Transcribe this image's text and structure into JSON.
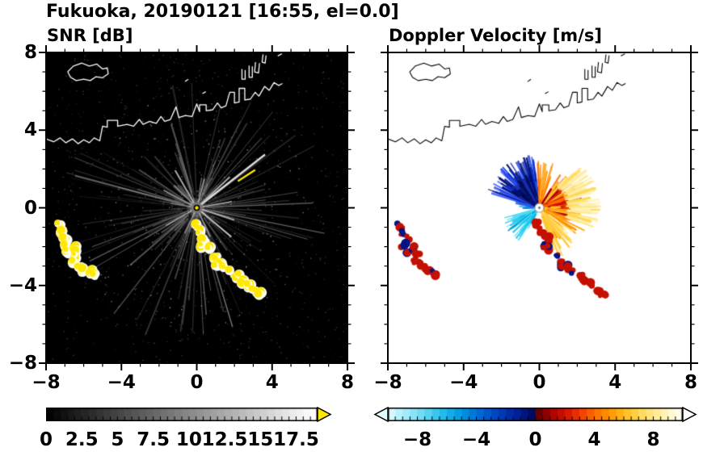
{
  "title": "Fukuoka, 20190121 [16:55, el=0.0]",
  "panels": {
    "snr": {
      "subtitle": "SNR [dB]"
    },
    "doppler": {
      "subtitle": "Doppler Velocity [m/s]"
    }
  },
  "axes": {
    "xlim": [
      -8,
      8
    ],
    "ylim": [
      -8,
      8
    ],
    "x_tick_values": [
      -8,
      -4,
      0,
      4,
      8
    ],
    "x_tick_labels": [
      "−8",
      "−4",
      "0",
      "4",
      "8"
    ],
    "y_tick_values": [
      8,
      4,
      0,
      -4,
      -8
    ],
    "y_tick_labels": [
      "8",
      "4",
      "0",
      "−4",
      "−8"
    ],
    "minor_step": 1
  },
  "colorbars": {
    "snr": {
      "range": [
        0,
        19
      ],
      "tick_values": [
        0,
        2.5,
        5,
        7.5,
        10,
        12.5,
        15,
        17.5
      ],
      "labels": [
        "0",
        "2.5",
        "5",
        "7.5",
        "10",
        "12.5",
        "15",
        "17.5"
      ],
      "colormap": "black-to-white",
      "over_arrow_color": "#ffe800"
    },
    "doppler": {
      "range": [
        -10,
        10
      ],
      "tick_values": [
        -8,
        -4,
        0,
        4,
        8
      ],
      "labels": [
        "−8",
        "−4",
        "0",
        "4",
        "8"
      ],
      "colormap": "cyan-blue-navy | darkred-red-orange-yellow-white",
      "stops": [
        [
          -10,
          "#e2fbff"
        ],
        [
          -9,
          "#aeeefd"
        ],
        [
          -8,
          "#7ddff7"
        ],
        [
          -7,
          "#45cdf0"
        ],
        [
          -6,
          "#18b5e8"
        ],
        [
          -5,
          "#0096e0"
        ],
        [
          -4,
          "#0070d8"
        ],
        [
          -3,
          "#004fc8"
        ],
        [
          -2,
          "#0031b0"
        ],
        [
          -1,
          "#001a90"
        ],
        [
          -0.5,
          "#000e6e"
        ],
        [
          -0.01,
          "#000850"
        ],
        [
          0.01,
          "#500000"
        ],
        [
          0.5,
          "#7a0000"
        ],
        [
          1,
          "#a80000"
        ],
        [
          2,
          "#d01000"
        ],
        [
          3,
          "#f03800"
        ],
        [
          4,
          "#ff6a00"
        ],
        [
          5,
          "#ff9400"
        ],
        [
          6,
          "#ffbb1c"
        ],
        [
          7,
          "#ffd64f"
        ],
        [
          8,
          "#ffe88a"
        ],
        [
          9,
          "#fff5c0"
        ],
        [
          10,
          "#ffffff"
        ]
      ]
    }
  },
  "chart_data": [
    {
      "type": "heatmap",
      "name": "snr",
      "title": "SNR [dB]",
      "xlabel": "",
      "ylabel": "",
      "xlim": [
        -8,
        8
      ],
      "ylim": [
        -8,
        8
      ],
      "xticks": [
        -8,
        -4,
        0,
        4,
        8
      ],
      "yticks": [
        -8,
        -4,
        0,
        4,
        8
      ],
      "colorbar": {
        "range": [
          0,
          19
        ],
        "label_values": [
          0,
          2.5,
          5,
          7.5,
          10,
          12.5,
          15,
          17.5
        ],
        "units": "dB",
        "colormap": "black to white with yellow over-range arrow"
      },
      "description": "Lidar PPI scan centered at origin: black background, gray radial SNR streaks around the scanner, bright streak toward the upper right, yellow high-SNR clutter arc running to the lower right and clutter patches to the west, white coastline with harbor piers along the north"
    },
    {
      "type": "heatmap",
      "name": "doppler",
      "title": "Doppler Velocity [m/s]",
      "xlabel": "",
      "ylabel": "",
      "xlim": [
        -8,
        8
      ],
      "ylim": [
        -8,
        8
      ],
      "xticks": [
        -8,
        -4,
        0,
        4,
        8
      ],
      "yticks": [
        -8,
        -4,
        0,
        4,
        8
      ],
      "colorbar": {
        "range": [
          -10,
          10
        ],
        "label_values": [
          -8,
          -4,
          0,
          4,
          8
        ],
        "units": "m/s",
        "colormap": "cyan-blue-navy for negative, dark red-orange-yellow-white for positive"
      },
      "description": "Doppler velocity PPI on white background: blue/navy (toward) fan to the northwest, red-orange-yellow (away) fan to the east and southeast, cyan streaks to the southwest, orange specks to the north, clutter arcs rendered red with navy patches, black coastline to the north"
    }
  ],
  "geo": {
    "mainland": [
      [
        -8.0,
        3.55
      ],
      [
        -7.6,
        3.4
      ],
      [
        -7.25,
        3.6
      ],
      [
        -6.95,
        3.35
      ],
      [
        -6.6,
        3.55
      ],
      [
        -6.3,
        3.3
      ],
      [
        -6.0,
        3.5
      ],
      [
        -5.7,
        3.35
      ],
      [
        -5.45,
        3.6
      ],
      [
        -5.15,
        3.45
      ],
      [
        -5.0,
        4.2
      ],
      [
        -4.75,
        4.15
      ],
      [
        -4.75,
        4.5
      ],
      [
        -4.2,
        4.5
      ],
      [
        -4.2,
        4.2
      ],
      [
        -3.7,
        4.3
      ],
      [
        -3.35,
        4.2
      ],
      [
        -3.05,
        4.55
      ],
      [
        -2.85,
        4.3
      ],
      [
        -2.5,
        4.45
      ],
      [
        -2.15,
        4.35
      ],
      [
        -1.9,
        4.7
      ],
      [
        -1.7,
        4.45
      ],
      [
        -1.4,
        4.55
      ],
      [
        -1.1,
        5.2
      ],
      [
        -0.95,
        4.65
      ],
      [
        -0.6,
        4.75
      ],
      [
        -0.25,
        4.7
      ],
      [
        0.0,
        5.35
      ],
      [
        0.15,
        4.95
      ],
      [
        0.15,
        5.3
      ],
      [
        0.5,
        5.3
      ],
      [
        0.5,
        5.0
      ],
      [
        0.85,
        5.05
      ],
      [
        1.1,
        5.4
      ],
      [
        1.3,
        5.15
      ],
      [
        1.55,
        5.25
      ],
      [
        1.75,
        5.95
      ],
      [
        2.0,
        5.95
      ],
      [
        2.0,
        5.4
      ],
      [
        2.25,
        5.45
      ],
      [
        2.25,
        6.15
      ],
      [
        2.55,
        6.15
      ],
      [
        2.55,
        5.55
      ],
      [
        2.85,
        5.6
      ],
      [
        3.1,
        5.95
      ],
      [
        3.3,
        5.75
      ],
      [
        3.6,
        6.25
      ],
      [
        3.85,
        6.05
      ],
      [
        4.1,
        6.45
      ],
      [
        4.35,
        6.3
      ],
      [
        4.55,
        6.4
      ]
    ],
    "island": [
      [
        -6.85,
        7.0
      ],
      [
        -6.55,
        7.3
      ],
      [
        -6.1,
        7.45
      ],
      [
        -5.7,
        7.3
      ],
      [
        -5.3,
        7.4
      ],
      [
        -5.0,
        7.15
      ],
      [
        -4.75,
        7.2
      ],
      [
        -4.7,
        6.9
      ],
      [
        -5.0,
        6.7
      ],
      [
        -5.35,
        6.75
      ],
      [
        -5.65,
        6.55
      ],
      [
        -6.0,
        6.62
      ],
      [
        -6.4,
        6.55
      ],
      [
        -6.7,
        6.72
      ],
      [
        -6.85,
        7.0
      ]
    ],
    "piers": [
      [
        [
          2.4,
          7.15
        ],
        [
          2.4,
          6.62
        ],
        [
          2.57,
          6.62
        ],
        [
          2.57,
          7.1
        ]
      ],
      [
        [
          2.78,
          7.32
        ],
        [
          2.78,
          6.72
        ],
        [
          2.95,
          6.72
        ],
        [
          2.95,
          7.28
        ]
      ],
      [
        [
          3.12,
          7.5
        ],
        [
          3.07,
          7.0
        ],
        [
          3.28,
          6.95
        ],
        [
          3.33,
          7.45
        ]
      ],
      [
        [
          3.52,
          7.9
        ],
        [
          3.47,
          7.5
        ],
        [
          3.63,
          7.45
        ],
        [
          3.68,
          7.85
        ]
      ]
    ],
    "marks": [
      [
        [
          -0.62,
          6.5
        ],
        [
          -0.45,
          6.62
        ]
      ],
      [
        [
          0.3,
          5.88
        ],
        [
          0.48,
          5.98
        ]
      ],
      [
        [
          4.3,
          7.82
        ],
        [
          4.52,
          7.93
        ]
      ]
    ],
    "clutter_chain": [
      [
        -0.15,
        -0.85
      ],
      [
        0.1,
        -1.2
      ],
      [
        0.38,
        -1.55
      ],
      [
        0.22,
        -1.95
      ],
      [
        0.58,
        -2.1
      ],
      [
        0.9,
        -2.45
      ],
      [
        1.2,
        -2.7
      ],
      [
        1.05,
        -3.0
      ],
      [
        1.48,
        -3.05
      ],
      [
        1.8,
        -3.3
      ],
      [
        2.15,
        -3.5
      ],
      [
        2.45,
        -3.75
      ],
      [
        2.8,
        -3.95
      ],
      [
        3.05,
        -4.2
      ],
      [
        3.35,
        -4.45
      ]
    ],
    "clutter_west": [
      [
        -7.35,
        -0.9
      ],
      [
        -7.2,
        -1.25
      ],
      [
        -7.0,
        -1.6
      ],
      [
        -7.15,
        -1.95
      ],
      [
        -6.85,
        -2.2
      ],
      [
        -6.55,
        -2.05
      ],
      [
        -6.45,
        -2.45
      ],
      [
        -6.7,
        -2.72
      ],
      [
        -6.3,
        -2.9
      ],
      [
        -6.0,
        -3.15
      ],
      [
        -5.68,
        -3.3
      ],
      [
        -5.38,
        -3.45
      ]
    ]
  },
  "snr_render": {
    "ray_count": 170,
    "speckle_count": 900,
    "bright_rays": [
      {
        "a": 38,
        "r0": 0.3,
        "r1": 4.6,
        "w": 2.5,
        "c": "#dddddd"
      },
      {
        "a": 33,
        "r0": 2.6,
        "r1": 3.7,
        "w": 2.2,
        "c": "#ffe800"
      },
      {
        "a": 43,
        "r0": 0.3,
        "r1": 2.4,
        "w": 1.8,
        "c": "#b8b8b8"
      },
      {
        "a": 120,
        "r0": 0.3,
        "r1": 2.3,
        "w": 2,
        "c": "#a8a8a8"
      },
      {
        "a": 135,
        "r0": 0.3,
        "r1": 1.7,
        "w": 1.6,
        "c": "#909090"
      },
      {
        "a": 152,
        "r0": 0.3,
        "r1": 2.0,
        "w": 1.6,
        "c": "#989898"
      },
      {
        "a": 75,
        "r0": 0.3,
        "r1": 1.6,
        "w": 1.6,
        "c": "#9a9a9a"
      },
      {
        "a": 10,
        "r0": 0.3,
        "r1": 1.9,
        "w": 1.6,
        "c": "#ababab"
      },
      {
        "a": -18,
        "r0": 0.3,
        "r1": 2.1,
        "w": 1.8,
        "c": "#b0b0b0"
      },
      {
        "a": -40,
        "r0": 0.3,
        "r1": 2.4,
        "w": 2,
        "c": "#c0c0c0"
      },
      {
        "a": -65,
        "r0": 0.3,
        "r1": 1.7,
        "w": 1.6,
        "c": "#969696"
      },
      {
        "a": -115,
        "r0": 0.3,
        "r1": 1.5,
        "w": 1.6,
        "c": "#8a8a8a"
      },
      {
        "a": -150,
        "r0": 0.3,
        "r1": 1.9,
        "w": 1.6,
        "c": "#9e9e9e"
      },
      {
        "a": 170,
        "r0": 0.3,
        "r1": 1.4,
        "w": 1.4,
        "c": "#888888"
      }
    ],
    "clutter_color": "#ffe800",
    "coast_color": "#ffffff"
  },
  "doppler_render": {
    "sectors": [
      {
        "a0": 95,
        "a1": 163,
        "r": 2.9,
        "n": 120,
        "w": [
          1.5,
          3.2
        ],
        "colors": [
          "#0a2fd0",
          "#0b1fa0",
          "#2b4bee",
          "#021a7e",
          "#4a66ff",
          "#001060"
        ]
      },
      {
        "a0": 104,
        "a1": 150,
        "r": 1.9,
        "n": 70,
        "w": [
          2,
          3.6
        ],
        "colors": [
          "#00106e",
          "#000a50",
          "#1a2fb0"
        ]
      },
      {
        "a0": 70,
        "a1": 96,
        "r": 2.6,
        "n": 24,
        "w": [
          1,
          2
        ],
        "colors": [
          "#ff8800",
          "#ff6200",
          "#ffaa22"
        ]
      },
      {
        "a0": -28,
        "a1": 58,
        "r": 2.3,
        "n": 130,
        "w": [
          1.5,
          3.2
        ],
        "colors": [
          "#d81100",
          "#ff6a00",
          "#ff9400",
          "#ffc633",
          "#a80000"
        ]
      },
      {
        "a0": -22,
        "a1": 50,
        "r0": 1.4,
        "r": 3.3,
        "n": 80,
        "w": [
          1.5,
          3
        ],
        "colors": [
          "#ffe88a",
          "#fff3bb",
          "#ffd64f"
        ]
      },
      {
        "a0": -72,
        "a1": -26,
        "r": 2.9,
        "n": 55,
        "w": [
          1.5,
          2.6
        ],
        "colors": [
          "#ffd64f",
          "#ffc830",
          "#ffeeaa",
          "#ff9400"
        ]
      },
      {
        "a0": 196,
        "a1": 243,
        "r": 2.1,
        "n": 45,
        "w": [
          1,
          2.2
        ],
        "colors": [
          "#18c8ee",
          "#55ddf5",
          "#00a8dd",
          "#7ae6f7"
        ]
      },
      {
        "a0": 160,
        "a1": 182,
        "r": 1.3,
        "n": 16,
        "w": [
          1,
          2
        ],
        "colors": [
          "#2b4bee",
          "#0096e0"
        ]
      }
    ],
    "clutter_colors": [
      "#c41000",
      "#001488"
    ],
    "coast_color": "#000000"
  }
}
